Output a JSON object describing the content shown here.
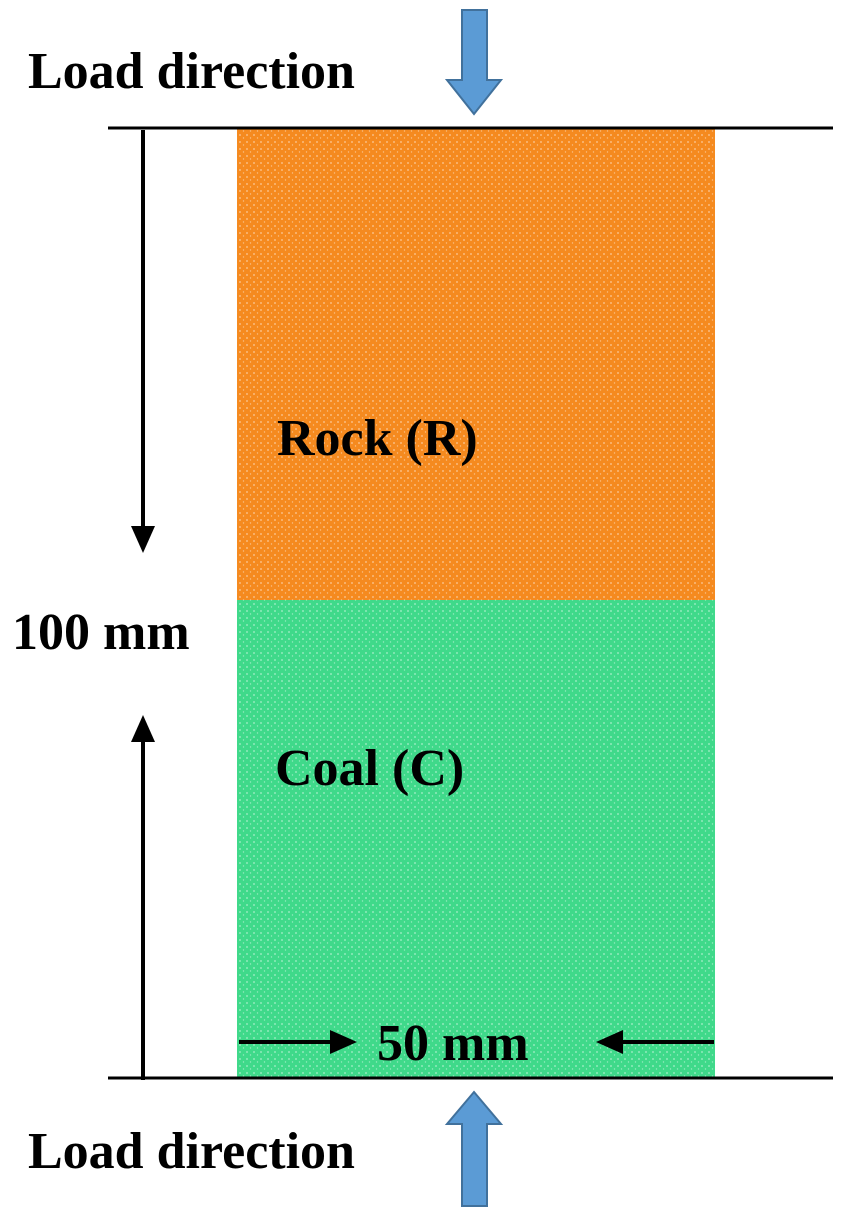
{
  "load_top": {
    "label": "Load direction",
    "arrow_icon": "arrow-down-icon"
  },
  "load_bottom": {
    "label": "Load direction",
    "arrow_icon": "arrow-up-icon"
  },
  "rock": {
    "label": "Rock (R)",
    "color": "#F58A1F"
  },
  "coal": {
    "label": "Coal (C)",
    "color": "#3FD98A"
  },
  "height_dimension": {
    "label": "100 mm"
  },
  "width_dimension": {
    "label": "50 mm"
  },
  "colors": {
    "load_arrow_fill": "#5B9BD5",
    "load_arrow_stroke": "#41719C",
    "line": "#000000"
  }
}
